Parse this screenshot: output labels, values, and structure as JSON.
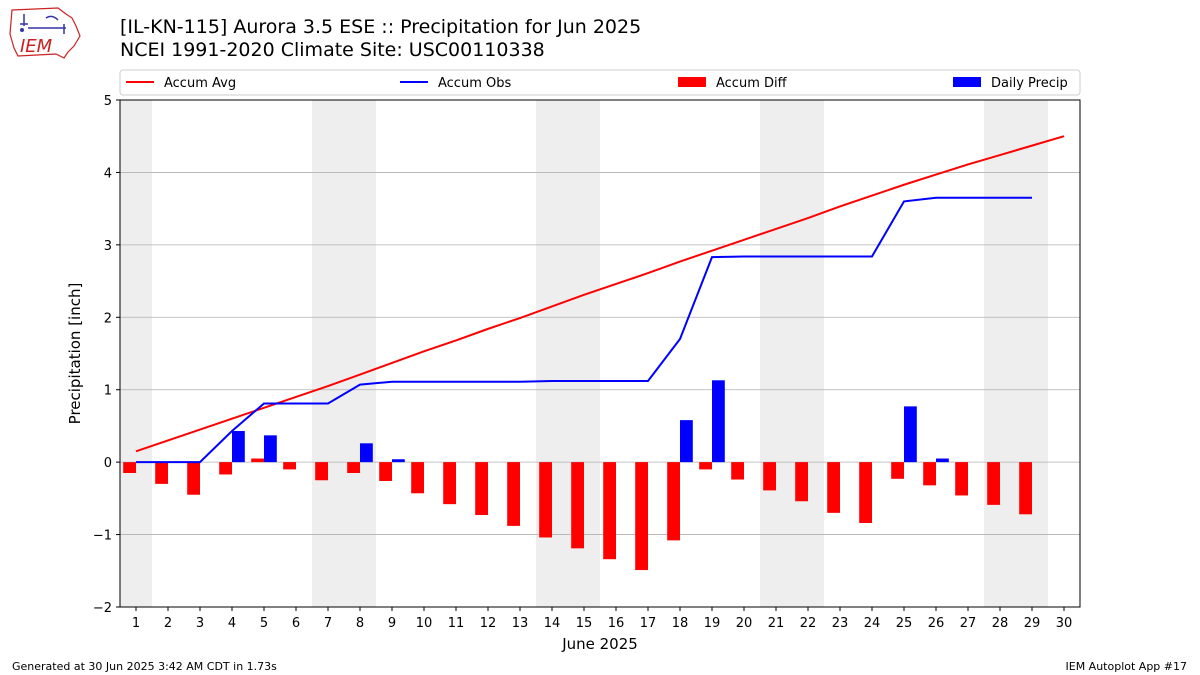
{
  "header": {
    "title_line1": "[IL-KN-115] Aurora 3.5 ESE :: Precipitation for Jun 2025",
    "title_line2": "NCEI 1991-2020 Climate Site: USC00110338",
    "logo_text": "IEM"
  },
  "footer": {
    "generated": "Generated at 30 Jun 2025 3:42 AM CDT in 1.73s",
    "app": "IEM Autoplot App #17"
  },
  "colors": {
    "avg": "#ff0000",
    "obs": "#0000ff",
    "diff": "#ff0000",
    "daily": "#0000ff",
    "weekend": "#eeeeee",
    "grid": "#b0b0b0"
  },
  "chart_data": {
    "type": "bar",
    "title": "[IL-KN-115] Aurora 3.5 ESE :: Precipitation for Jun 2025",
    "subtitle": "NCEI 1991-2020 Climate Site: USC00110338",
    "xlabel": "June 2025",
    "ylabel": "Precipitation [inch]",
    "xlim": [
      0.5,
      30.5
    ],
    "ylim": [
      -2,
      5
    ],
    "yticks": [
      -2,
      -1,
      0,
      1,
      2,
      3,
      4,
      5
    ],
    "yticklabels": [
      "−2",
      "−1",
      "0",
      "1",
      "2",
      "3",
      "4",
      "5"
    ],
    "xticks": [
      1,
      2,
      3,
      4,
      5,
      6,
      7,
      8,
      9,
      10,
      11,
      12,
      13,
      14,
      15,
      16,
      17,
      18,
      19,
      20,
      21,
      22,
      23,
      24,
      25,
      26,
      27,
      28,
      29,
      30
    ],
    "grid": "horizontal",
    "legend_position": "top",
    "weekend_days": [
      1,
      7,
      8,
      14,
      15,
      21,
      22,
      28,
      29
    ],
    "days": [
      1,
      2,
      3,
      4,
      5,
      6,
      7,
      8,
      9,
      10,
      11,
      12,
      13,
      14,
      15,
      16,
      17,
      18,
      19,
      20,
      21,
      22,
      23,
      24,
      25,
      26,
      27,
      28,
      29,
      30
    ],
    "series": [
      {
        "name": "Accum Avg",
        "type": "line",
        "values": [
          0.15,
          0.3,
          0.45,
          0.6,
          0.75,
          0.9,
          1.05,
          1.21,
          1.37,
          1.53,
          1.68,
          1.84,
          1.99,
          2.15,
          2.31,
          2.46,
          2.61,
          2.77,
          2.92,
          3.07,
          3.22,
          3.37,
          3.53,
          3.68,
          3.83,
          3.97,
          4.11,
          4.24,
          4.37,
          4.5
        ]
      },
      {
        "name": "Accum Obs",
        "type": "line",
        "values": [
          0.0,
          0.0,
          0.0,
          0.43,
          0.81,
          0.81,
          0.81,
          1.07,
          1.11,
          1.11,
          1.11,
          1.11,
          1.11,
          1.12,
          1.12,
          1.12,
          1.12,
          1.7,
          2.83,
          2.84,
          2.84,
          2.84,
          2.84,
          2.84,
          3.6,
          3.65,
          3.65,
          3.65,
          3.65
        ]
      },
      {
        "name": "Accum Diff",
        "type": "bar",
        "values": [
          -0.15,
          -0.3,
          -0.45,
          -0.17,
          0.05,
          -0.1,
          -0.25,
          -0.15,
          -0.26,
          -0.43,
          -0.58,
          -0.73,
          -0.88,
          -1.04,
          -1.19,
          -1.34,
          -1.49,
          -1.08,
          -0.1,
          -0.24,
          -0.39,
          -0.54,
          -0.7,
          -0.84,
          -0.23,
          -0.32,
          -0.46,
          -0.59,
          -0.72
        ]
      },
      {
        "name": "Daily Precip",
        "type": "bar",
        "values": [
          0.0,
          0.0,
          0.0,
          0.43,
          0.37,
          0.0,
          0.0,
          0.26,
          0.04,
          0.0,
          0.0,
          0.0,
          0.0,
          0.0,
          0.0,
          0.0,
          0.0,
          0.58,
          1.13,
          0.0,
          0.0,
          0.0,
          0.0,
          0.0,
          0.77,
          0.05,
          0.0,
          0.0,
          0.0
        ]
      }
    ]
  }
}
